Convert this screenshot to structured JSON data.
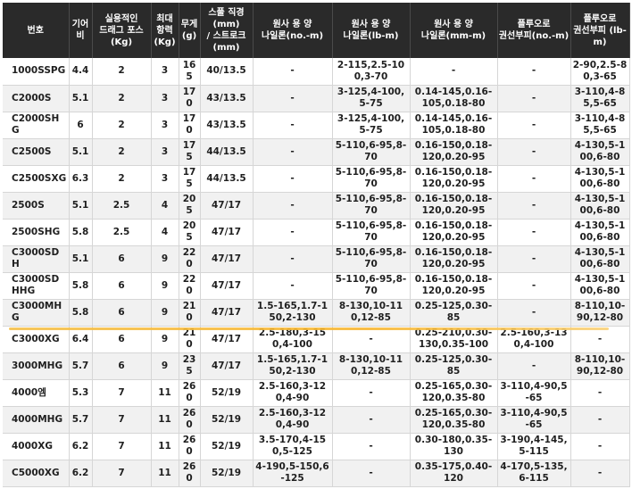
{
  "table": {
    "headers": [
      "번호",
      "기어\n비",
      "실용적인\n드래그 포스\n(Kg)",
      "최대\n항력\n(Kg)",
      "무게\n(g)",
      "스풀 직경\n(mm)\n/ 스트로크\n(mm)",
      "원사 용 양\n나일론(no.-m)",
      "원사 용 양\n나일론(lb-m)",
      "원사 용 양\n나일론(mm-m)",
      "플루오로\n권선부피(no.-m)",
      "플루오로\n권선부피 (lb-m)"
    ],
    "rows": [
      [
        "1000SSPG",
        "4.4",
        "2",
        "3",
        "165",
        "40/13.5",
        "-",
        "2-115,2.5-100,3-70",
        "-",
        "-",
        "2-90,2.5-80,3-65"
      ],
      [
        "C2000S",
        "5.1",
        "2",
        "3",
        "170",
        "43/13.5",
        "-",
        "3-125,4-100,5-75",
        "0.14-145,0.16-105,0.18-80",
        "-",
        "3-110,4-85,5-65"
      ],
      [
        "C2000SHG",
        "6",
        "2",
        "3",
        "170",
        "43/13.5",
        "-",
        "3-125,4-100,5-75",
        "0.14-145,0.16-105,0.18-80",
        "-",
        "3-110,4-85,5-65"
      ],
      [
        "C2500S",
        "5.1",
        "2",
        "3",
        "175",
        "44/13.5",
        "-",
        "5-110,6-95,8-70",
        "0.16-150,0.18-120,0.20-95",
        "-",
        "4-130,5-100,6-80"
      ],
      [
        "C2500SXG",
        "6.3",
        "2",
        "3",
        "175",
        "44/13.5",
        "-",
        "5-110,6-95,8-70",
        "0.16-150,0.18-120,0.20-95",
        "-",
        "4-130,5-100,6-80"
      ],
      [
        "2500S",
        "5.1",
        "2.5",
        "4",
        "205",
        "47/17",
        "-",
        "5-110,6-95,8-70",
        "0.16-150,0.18-120,0.20-95",
        "-",
        "4-130,5-100,6-80"
      ],
      [
        "2500SHG",
        "5.8",
        "2.5",
        "4",
        "205",
        "47/17",
        "-",
        "5-110,6-95,8-70",
        "0.16-150,0.18-120,0.20-95",
        "-",
        "4-130,5-100,6-80"
      ],
      [
        "C3000SDH",
        "5.1",
        "6",
        "9",
        "220",
        "47/17",
        "-",
        "5-110,6-95,8-70",
        "0.16-150,0.18-120,0.20-95",
        "-",
        "4-130,5-100,6-80"
      ],
      [
        "C3000SDHHG",
        "5.8",
        "6",
        "9",
        "220",
        "47/17",
        "-",
        "5-110,6-95,8-70",
        "0.16-150,0.18-120,0.20-95",
        "-",
        "4-130,5-100,6-80"
      ],
      [
        "C3000MHG",
        "5.8",
        "6",
        "9",
        "210",
        "47/17",
        "1.5-165,1.7-150,2-130",
        "8-130,10-110,12-85",
        "0.25-125,0.30-85",
        "-",
        "8-110,10-90,12-80"
      ],
      [
        "C3000XG",
        "6.4",
        "6",
        "9",
        "210",
        "47/17",
        "2.5-180,3-150,4-100",
        "-",
        "0.25-210,0.30-130,0.35-100",
        "2.5-160,3-130,4-100",
        "-"
      ],
      [
        "3000MHG",
        "5.7",
        "6",
        "9",
        "235",
        "47/17",
        "1.5-165,1.7-150,2-130",
        "8-130,10-110,12-85",
        "0.25-125,0.30-85",
        "-",
        "8-110,10-90,12-80"
      ],
      [
        "4000엠",
        "5.3",
        "7",
        "11",
        "260",
        "52/19",
        "2.5-160,3-120,4-90",
        "-",
        "0.25-165,0.30-120,0.35-80",
        "3-110,4-90,5-65",
        "-"
      ],
      [
        "4000MHG",
        "5.7",
        "7",
        "11",
        "260",
        "52/19",
        "2.5-160,3-120,4-90",
        "-",
        "0.25-165,0.30-120,0.35-80",
        "3-110,4-90,5-65",
        "-"
      ],
      [
        "4000XG",
        "6.2",
        "7",
        "11",
        "260",
        "52/19",
        "3.5-170,4-150,5-125",
        "-",
        "0.30-180,0.35-130",
        "3-190,4-145,5-115",
        "-"
      ],
      [
        "C5000XG",
        "6.2",
        "7",
        "11",
        "260",
        "52/19",
        "4-190,5-150,6-125",
        "-",
        "0.35-175,0.40-120",
        "4-170,5-135,6-115",
        "-"
      ]
    ]
  }
}
